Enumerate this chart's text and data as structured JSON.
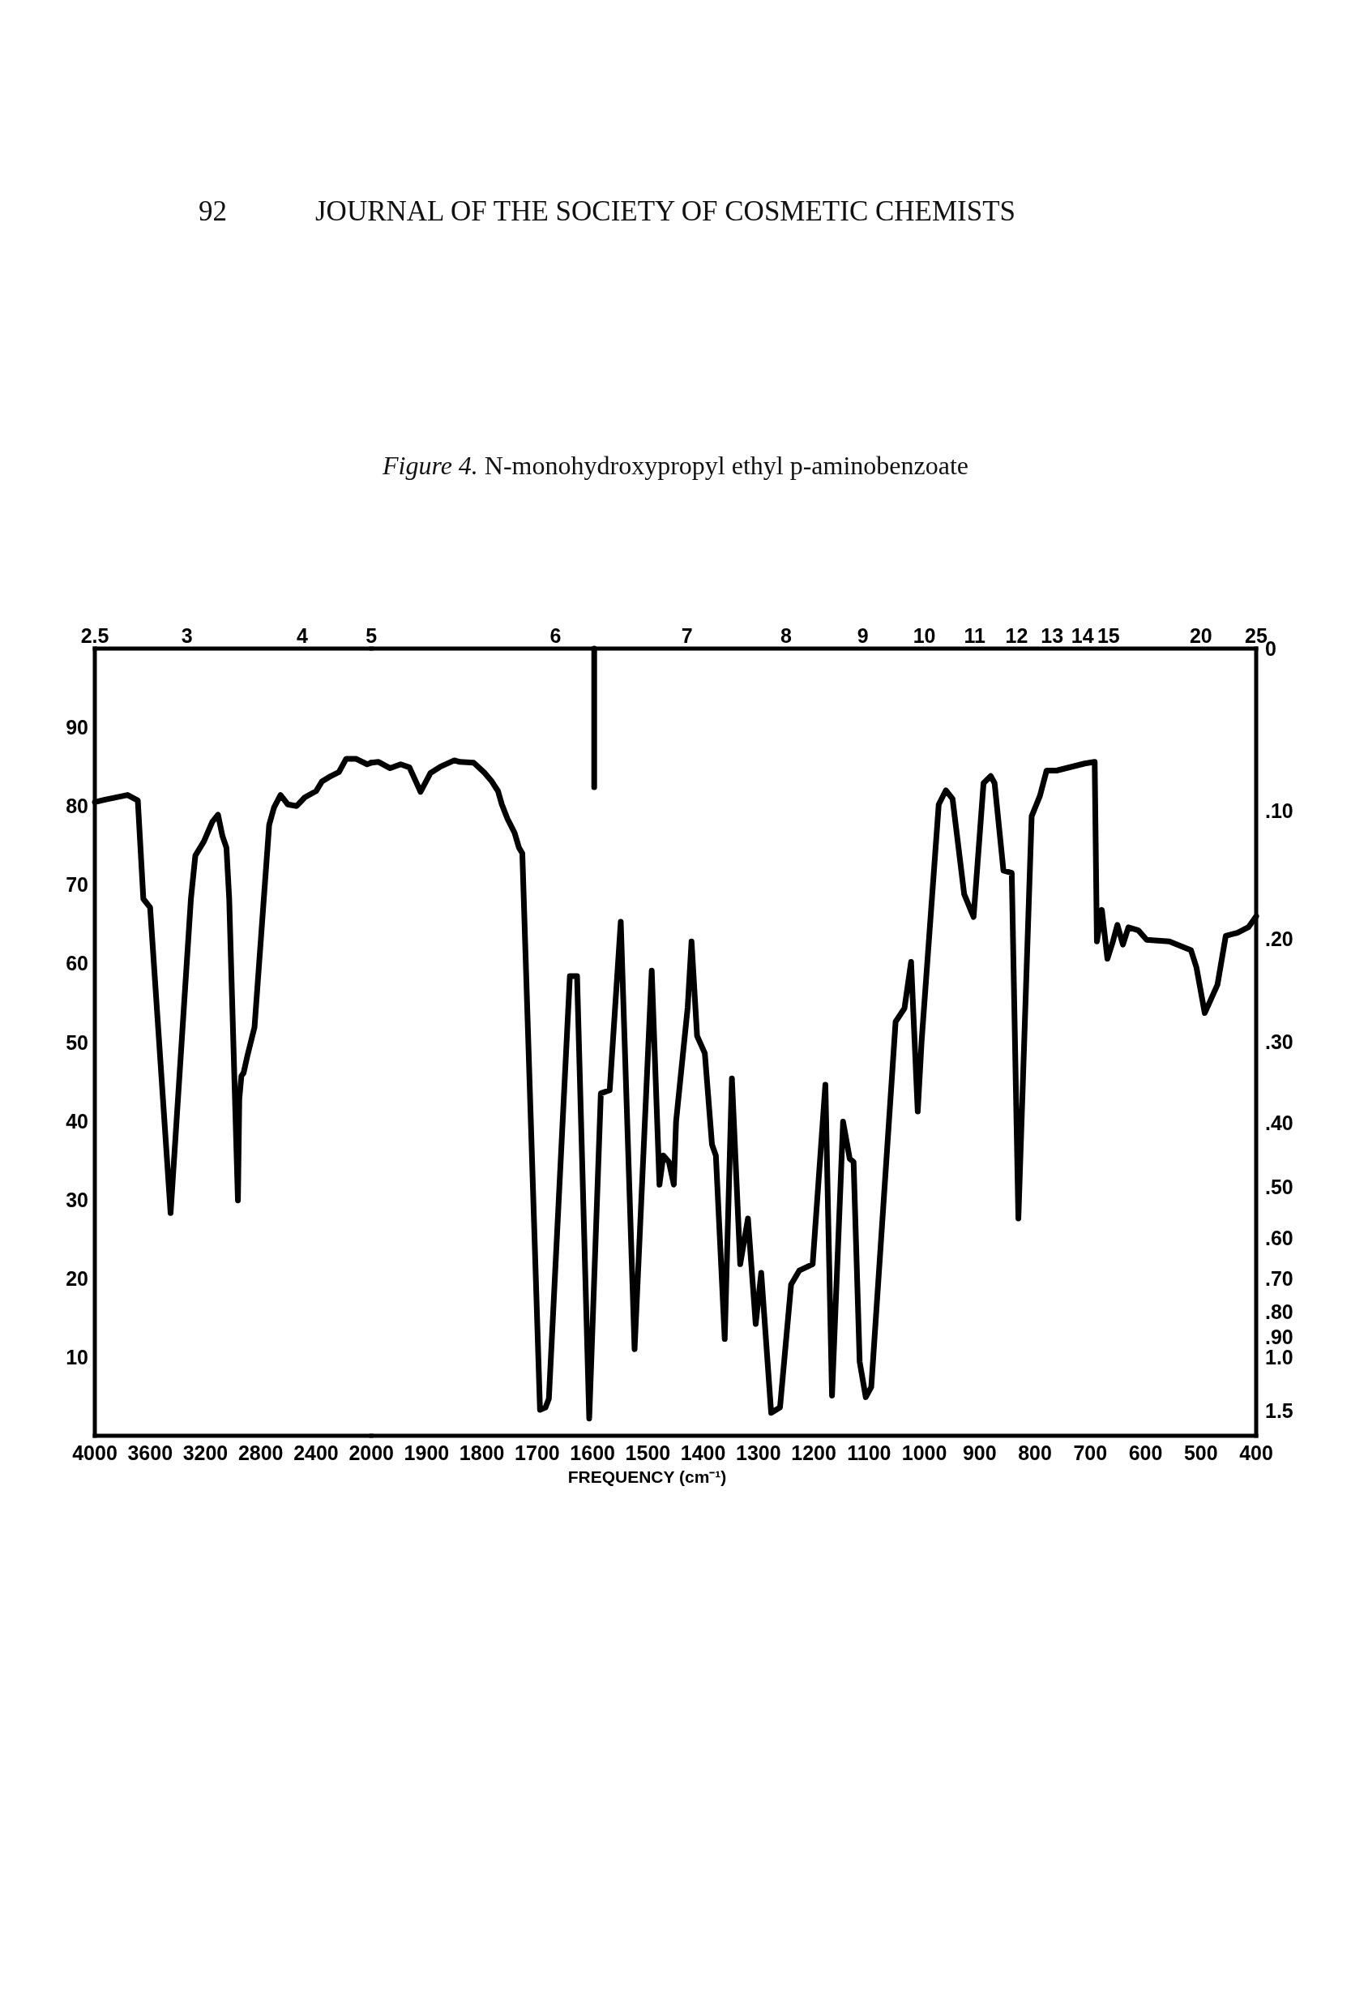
{
  "chart_data": [
    {
      "type": "line",
      "annotations": [
        "92",
        "JOURNAL OF THE SOCIETY OF COSMETIC CHEMISTS",
        "2.5",
        "3",
        "4",
        "5"
      ],
      "xlim": [
        4000,
        2000
      ],
      "xticks": [
        4000,
        3600,
        3200,
        2800,
        2400,
        2000
      ],
      "ylim": [
        0,
        100
      ],
      "yticks": [
        10,
        20,
        30,
        40,
        50,
        60,
        70,
        80,
        90
      ],
      "series": [
        {
          "color": "#000000",
          "x": [
            4000,
            3926,
            3763,
            3689,
            3649,
            3600,
            3452,
            3305,
            3273,
            3211,
            3150,
            3109,
            3077,
            3048,
            3028,
            2965,
            2955,
            2940,
            2924,
            2896,
            2845,
            2739,
            2704,
            2657,
            2604,
            2540,
            2481,
            2399,
            2358,
            2293,
            2235,
            2182,
            2112,
            2030,
            2000
          ],
          "values": [
            80.5,
            80.8,
            81.4,
            80.7,
            68.2,
            67.1,
            28.3,
            68.2,
            73.7,
            75.5,
            78.0,
            78.9,
            76.2,
            74.7,
            68.2,
            29.9,
            42.8,
            45.7,
            46.1,
            48.3,
            51.9,
            77.6,
            79.8,
            81.4,
            80.2,
            80.0,
            81.1,
            81.9,
            83.1,
            83.8,
            84.3,
            86.0,
            86.0,
            85.3,
            85.5
          ]
        }
      ]
    },
    {
      "type": "line",
      "title": "Figure 4. N-monohydroxypropyl ethyl p-aminobenzoate",
      "xlabel": "FREQUENCY (cm⁻¹)",
      "annotations": [
        "6",
        "7",
        "8",
        "9",
        "10",
        "11",
        "12",
        "13",
        "14",
        "15",
        "20",
        "25",
        "0",
        ".10",
        ".20",
        ".30",
        ".40",
        ".50",
        ".60",
        ".70",
        ".80",
        ".90",
        "1.0",
        "1.5"
      ],
      "xlim": [
        2000,
        400
      ],
      "xticks": [
        1900,
        1800,
        1700,
        1600,
        1500,
        1400,
        1300,
        1200,
        1100,
        1000,
        900,
        800,
        700,
        600,
        500,
        400
      ],
      "ylim": [
        0,
        100
      ],
      "series": [
        {
          "color": "#000000",
          "x": [
            2000,
            1987,
            1966,
            1947,
            1931,
            1911,
            1893,
            1875,
            1850,
            1840,
            1815,
            1795,
            1782,
            1771,
            1764,
            1754,
            1741,
            1733,
            1727,
            1695,
            1685,
            1679,
            1641,
            1628,
            1606,
            1585,
            1569,
            1549,
            1524,
            1493,
            1479,
            1472,
            1462,
            1453,
            1449,
            1428,
            1421,
            1411,
            1397,
            1384,
            1377,
            1361,
            1348,
            1333,
            1319,
            1305,
            1295,
            1277,
            1261,
            1241,
            1226,
            1202,
            1179,
            1167,
            1147,
            1135,
            1128,
            1117,
            1106,
            1096,
            1052,
            1036,
            1024,
            1012,
            1005,
            974,
            961,
            949,
            928,
            911,
            893,
            880,
            873,
            857,
            842,
            830,
            806,
            791,
            779,
            761,
            710,
            692,
            688,
            679,
            669,
            659,
            651,
            641,
            631,
            613,
            598,
            557,
            518,
            508,
            493,
            470,
            455,
            434,
            414,
            400
          ],
          "values": [
            85.5,
            85.6,
            84.8,
            85.3,
            84.9,
            81.8,
            84.2,
            85.0,
            85.8,
            85.6,
            85.5,
            84.2,
            83.1,
            81.9,
            80.2,
            78.4,
            76.6,
            74.7,
            74.0,
            3.3,
            3.6,
            4.7,
            58.4,
            58.4,
            2.2,
            43.5,
            43.9,
            65.3,
            11.0,
            59.1,
            31.9,
            35.6,
            34.8,
            31.9,
            39.9,
            54.4,
            62.8,
            50.8,
            48.6,
            37.0,
            35.6,
            12.3,
            45.4,
            21.8,
            27.6,
            14.2,
            20.7,
            2.9,
            3.6,
            19.2,
            21.0,
            21.8,
            44.6,
            5.1,
            39.9,
            35.2,
            34.8,
            9.4,
            4.9,
            6.2,
            52.6,
            54.3,
            60.2,
            41.2,
            50.1,
            80.2,
            82.0,
            80.9,
            68.8,
            65.9,
            82.9,
            83.8,
            82.9,
            71.8,
            71.5,
            27.6,
            78.7,
            81.3,
            84.5,
            84.5,
            85.4,
            85.6,
            62.8,
            66.8,
            60.6,
            62.8,
            64.9,
            62.4,
            64.6,
            64.2,
            63.0,
            62.8,
            61.7,
            59.5,
            53.7,
            57.3,
            63.5,
            63.9,
            64.6,
            66.0
          ]
        },
        {
          "color": "#000000",
          "x": [
            1597,
            1597
          ],
          "values": [
            82.4,
            100
          ]
        }
      ]
    }
  ]
}
